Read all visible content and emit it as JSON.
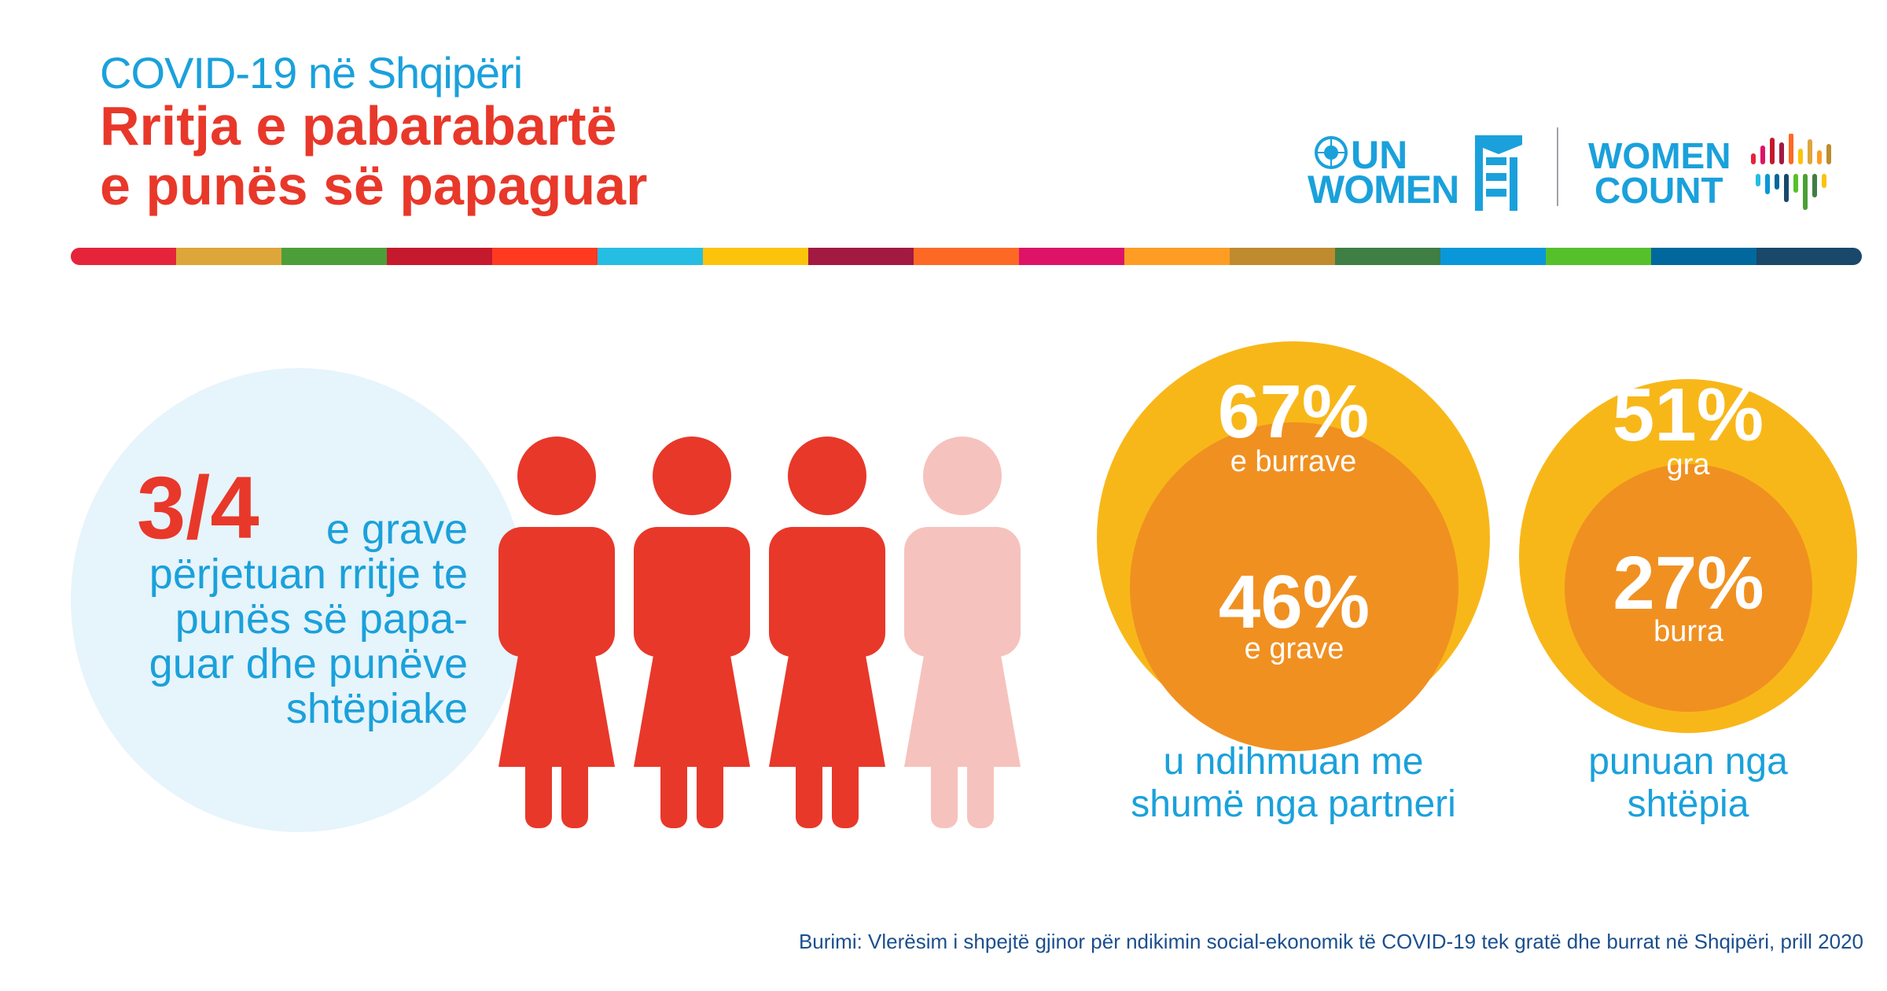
{
  "header": {
    "line1": "COVID-19 në Shqipëri",
    "line2a": "Rritja e pabarabartë",
    "line2b": "e punës së papaguar"
  },
  "logos": {
    "un_women_line1": "UN",
    "un_women_line2": "WOMEN",
    "women_count_line1": "WOMEN",
    "women_count_line2": "COUNT"
  },
  "stripe_colors": [
    "#e5243b",
    "#dda63a",
    "#4c9f38",
    "#c5192d",
    "#ff3a21",
    "#26bde2",
    "#fcc30b",
    "#a21942",
    "#fd6925",
    "#dd1367",
    "#fd9d24",
    "#bf8b2e",
    "#3f7e44",
    "#0a97d9",
    "#56c02b",
    "#00689d",
    "#19486a"
  ],
  "left_panel": {
    "fraction": "3/4",
    "caption_line1": "e grave",
    "caption_line2": "përjetuan rritje te",
    "caption_line3": "punës së papa-",
    "caption_line4": "guar dhe punëve",
    "caption_line5": "shtëpiake",
    "figures_filled": 3,
    "figures_total": 4,
    "figure_color": "#e8382a",
    "figure_faded_color": "#f6c2bd"
  },
  "help_panel": {
    "men_pct": "67%",
    "men_label": "e burrave",
    "women_pct": "46%",
    "women_label": "e grave",
    "caption_line1": "u ndihmuan me",
    "caption_line2": "shumë nga partneri"
  },
  "home_panel": {
    "women_pct": "51%",
    "women_label": "gra",
    "men_pct": "27%",
    "men_label": "burra",
    "caption_line1": "punuan nga",
    "caption_line2": "shtëpia"
  },
  "source": "Burimi: Vlerësim i shpejtë gjinor për ndikimin social-ekonomik të COVID-19 tek gratë dhe burrat në Shqipëri, prill 2020",
  "colors": {
    "accent_blue": "#1aa1db",
    "accent_red": "#e8382a",
    "circle_outer": "#f8b719",
    "circle_inner": "#f09021",
    "bubble": "#e6f4fb",
    "source_text": "#1b4f8d"
  }
}
